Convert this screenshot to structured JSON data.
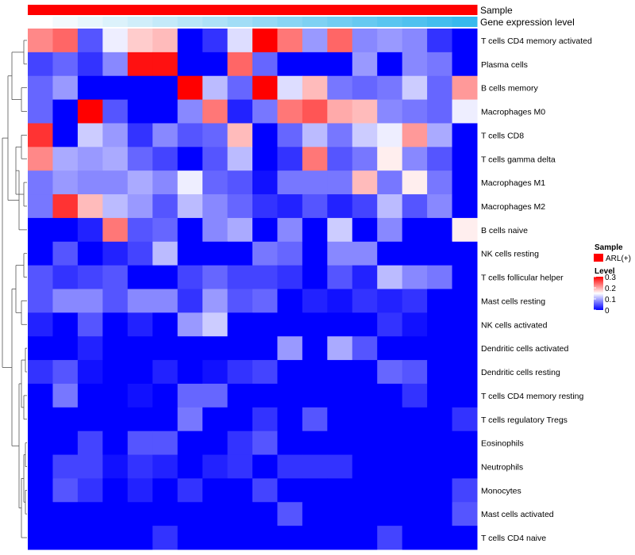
{
  "chart_data": {
    "type": "heatmap",
    "annotations": [
      {
        "name": "Sample",
        "colors": [
          "#ff0000",
          "#ff0000",
          "#ff0000",
          "#ff0000",
          "#ff0000",
          "#ff0000",
          "#ff0000",
          "#ff0000",
          "#ff0000",
          "#ff0000",
          "#ff0000",
          "#ff0000",
          "#ff0000",
          "#ff0000",
          "#ff0000",
          "#ff0000",
          "#ff0000",
          "#ff0000"
        ]
      },
      {
        "name": "Gene expression level",
        "colors": [
          "#ffffff",
          "#f3fafd",
          "#e8f6fc",
          "#dcf2fb",
          "#d0eefa",
          "#c4eaf9",
          "#b8e5f8",
          "#ade1f7",
          "#a1ddf6",
          "#95d9f5",
          "#89d5f4",
          "#7ed1f3",
          "#72cdf2",
          "#66c9f1",
          "#5ac5f0",
          "#4fc1ef",
          "#43bdee",
          "#37b9ed"
        ]
      }
    ],
    "row_labels": [
      "T cells CD4 memory activated",
      "Plasma cells",
      "B cells memory",
      "Macrophages M0",
      "T cells CD8",
      "T cells gamma delta",
      "Macrophages M1",
      "Macrophages M2",
      "B cells naive",
      "NK cells resting",
      "T cells follicular helper",
      "Mast cells resting",
      "NK cells activated",
      "Dendritic cells activated",
      "Dendritic cells resting",
      "T cells CD4 memory resting",
      "T cells regulatory  Tregs",
      "Eosinophils",
      "Neutrophils",
      "Monocytes",
      "Mast cells activated",
      "T cells CD4 naive"
    ],
    "values": [
      [
        0.22,
        0.24,
        0.05,
        0.14,
        0.18,
        0.19,
        0.0,
        0.03,
        0.13,
        0.3,
        0.23,
        0.09,
        0.24,
        0.08,
        0.09,
        0.08,
        0.03,
        0.0
      ],
      [
        0.04,
        0.06,
        0.03,
        0.08,
        0.29,
        0.29,
        0.0,
        0.0,
        0.24,
        0.06,
        0.0,
        0.0,
        0.0,
        0.09,
        0.0,
        0.08,
        0.07,
        0.0
      ],
      [
        0.06,
        0.09,
        0.0,
        0.0,
        0.0,
        0.0,
        0.3,
        0.11,
        0.06,
        0.3,
        0.13,
        0.19,
        0.07,
        0.06,
        0.07,
        0.12,
        0.06,
        0.21
      ],
      [
        0.06,
        0.0,
        0.3,
        0.05,
        0.0,
        0.0,
        0.08,
        0.23,
        0.02,
        0.07,
        0.23,
        0.25,
        0.2,
        0.19,
        0.08,
        0.07,
        0.06,
        0.14
      ],
      [
        0.27,
        0.0,
        0.12,
        0.09,
        0.03,
        0.08,
        0.05,
        0.06,
        0.19,
        0.0,
        0.06,
        0.11,
        0.07,
        0.12,
        0.14,
        0.21,
        0.1,
        0.0
      ],
      [
        0.22,
        0.1,
        0.09,
        0.1,
        0.06,
        0.04,
        0.0,
        0.05,
        0.11,
        0.0,
        0.03,
        0.23,
        0.05,
        0.07,
        0.16,
        0.08,
        0.05,
        0.0
      ],
      [
        0.07,
        0.09,
        0.08,
        0.08,
        0.1,
        0.08,
        0.14,
        0.06,
        0.05,
        0.01,
        0.07,
        0.07,
        0.07,
        0.19,
        0.07,
        0.16,
        0.07,
        0.0
      ],
      [
        0.07,
        0.27,
        0.19,
        0.11,
        0.09,
        0.05,
        0.11,
        0.08,
        0.06,
        0.03,
        0.02,
        0.05,
        0.02,
        0.04,
        0.11,
        0.05,
        0.08,
        0.0
      ],
      [
        0.0,
        0.0,
        0.02,
        0.23,
        0.05,
        0.06,
        0.0,
        0.08,
        0.1,
        0.0,
        0.08,
        0.0,
        0.12,
        0.0,
        0.08,
        0.0,
        0.0,
        0.16
      ],
      [
        0.0,
        0.05,
        0.0,
        0.02,
        0.04,
        0.11,
        0.0,
        0.0,
        0.0,
        0.07,
        0.06,
        0.0,
        0.08,
        0.08,
        0.0,
        0.0,
        0.0,
        0.0
      ],
      [
        0.05,
        0.03,
        0.04,
        0.05,
        0.0,
        0.0,
        0.04,
        0.06,
        0.04,
        0.04,
        0.03,
        0.0,
        0.05,
        0.02,
        0.11,
        0.08,
        0.07,
        0.0
      ],
      [
        0.05,
        0.08,
        0.08,
        0.05,
        0.08,
        0.08,
        0.03,
        0.09,
        0.05,
        0.06,
        0.0,
        0.02,
        0.01,
        0.03,
        0.02,
        0.03,
        0.0,
        0.0
      ],
      [
        0.02,
        0.0,
        0.05,
        0.0,
        0.02,
        0.0,
        0.09,
        0.12,
        0.0,
        0.0,
        0.0,
        0.0,
        0.0,
        0.0,
        0.03,
        0.01,
        0.0,
        0.0
      ],
      [
        0.0,
        0.0,
        0.02,
        0.0,
        0.0,
        0.0,
        0.0,
        0.0,
        0.0,
        0.0,
        0.09,
        0.0,
        0.1,
        0.05,
        0.0,
        0.0,
        0.0,
        0.0
      ],
      [
        0.03,
        0.05,
        0.01,
        0.0,
        0.0,
        0.02,
        0.0,
        0.01,
        0.03,
        0.04,
        0.0,
        0.0,
        0.0,
        0.0,
        0.06,
        0.05,
        0.0,
        0.0
      ],
      [
        0.0,
        0.07,
        0.0,
        0.0,
        0.01,
        0.0,
        0.06,
        0.06,
        0.0,
        0.0,
        0.0,
        0.0,
        0.0,
        0.0,
        0.0,
        0.03,
        0.0,
        0.0
      ],
      [
        0.0,
        0.0,
        0.0,
        0.0,
        0.0,
        0.0,
        0.07,
        0.0,
        0.0,
        0.03,
        0.0,
        0.05,
        0.0,
        0.0,
        0.0,
        0.0,
        0.0,
        0.03
      ],
      [
        0.0,
        0.0,
        0.04,
        0.0,
        0.05,
        0.05,
        0.0,
        0.0,
        0.03,
        0.05,
        0.0,
        0.0,
        0.0,
        0.0,
        0.0,
        0.0,
        0.0,
        0.0
      ],
      [
        0.0,
        0.04,
        0.04,
        0.01,
        0.03,
        0.02,
        0.0,
        0.02,
        0.03,
        0.0,
        0.03,
        0.03,
        0.03,
        0.0,
        0.0,
        0.0,
        0.0,
        0.0
      ],
      [
        0.0,
        0.05,
        0.03,
        0.0,
        0.02,
        0.0,
        0.03,
        0.0,
        0.0,
        0.04,
        0.0,
        0.0,
        0.0,
        0.0,
        0.0,
        0.0,
        0.0,
        0.04
      ],
      [
        0.0,
        0.0,
        0.0,
        0.0,
        0.0,
        0.0,
        0.0,
        0.0,
        0.0,
        0.0,
        0.05,
        0.0,
        0.0,
        0.0,
        0.0,
        0.0,
        0.0,
        0.05
      ],
      [
        0.0,
        0.0,
        0.0,
        0.0,
        0.0,
        0.03,
        0.0,
        0.0,
        0.0,
        0.0,
        0.0,
        0.0,
        0.0,
        0.0,
        0.04,
        0.0,
        0.0,
        0.0
      ]
    ],
    "color_scale": {
      "min": 0,
      "mid": 0.15,
      "max": 0.3,
      "low": "#0000ff",
      "midcolor": "#ffffff",
      "high": "#ff0000"
    },
    "legend_sample": {
      "title": "Sample",
      "items": [
        {
          "label": "ARL(+)",
          "color": "#ff0000"
        }
      ]
    },
    "legend_level": {
      "title": "Level",
      "ticks": [
        {
          "label": "0.3",
          "value": 0.3
        },
        {
          "label": "0.2",
          "value": 0.2
        },
        {
          "label": "0.1",
          "value": 0.1
        },
        {
          "label": "0",
          "value": 0
        }
      ]
    },
    "dendrogram": "row"
  }
}
